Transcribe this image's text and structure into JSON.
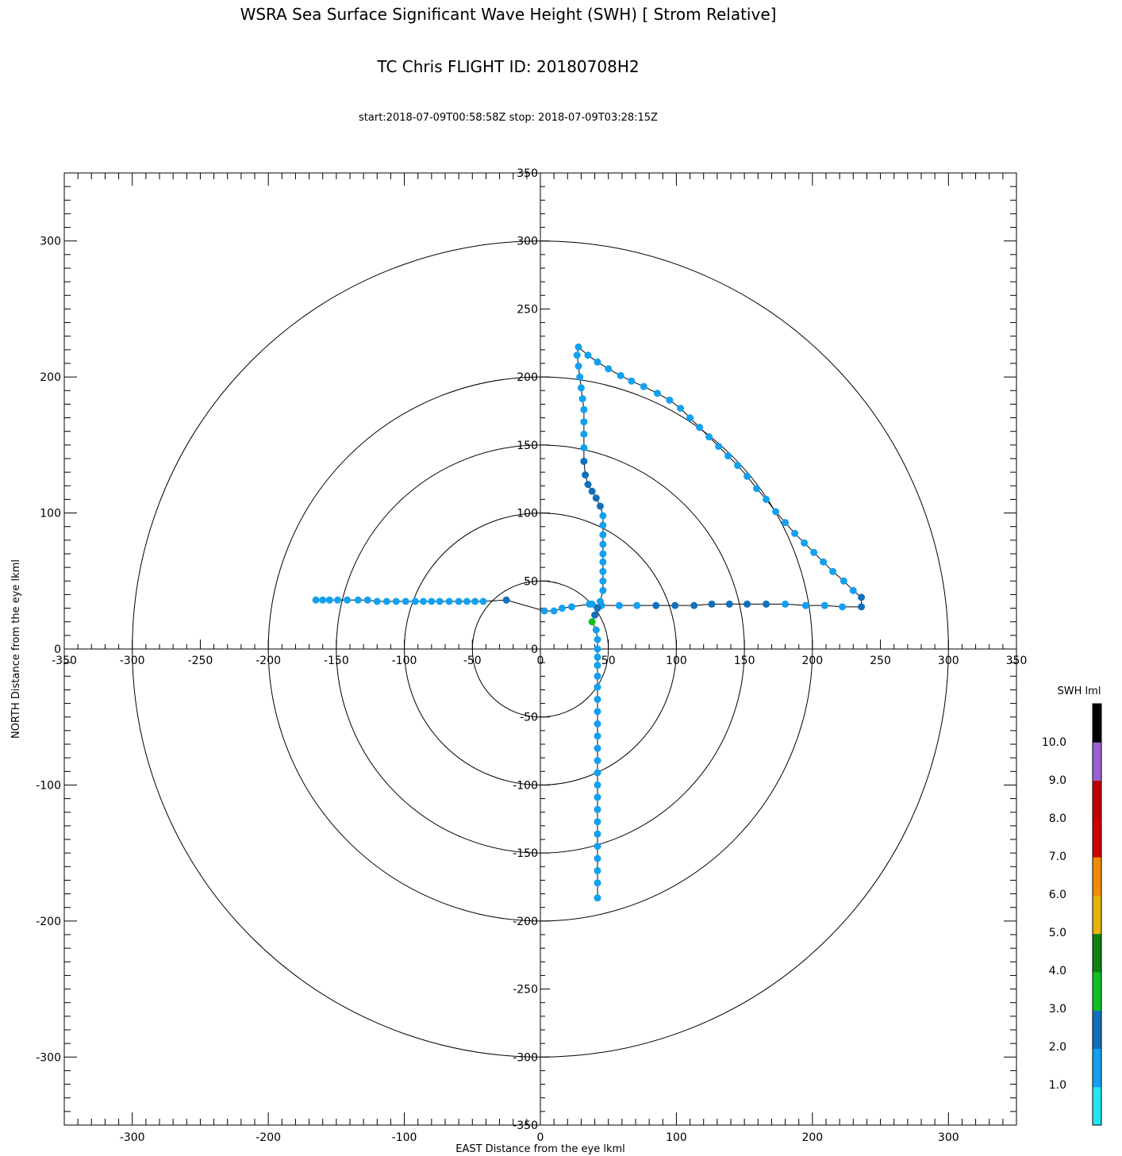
{
  "titles": {
    "line1": "WSRA Sea Surface Significant Wave Height (SWH) [ Strom Relative]",
    "line2": "TC Chris FLIGHT ID: 20180708H2",
    "line3": "start:2018-07-09T00:58:58Z stop: 2018-07-09T03:28:15Z"
  },
  "chart_data": {
    "type": "scatter",
    "title": "WSRA Sea Surface Significant Wave Height (SWH) [ Strom Relative]",
    "xlabel": "EAST Distance from the eye lkml",
    "ylabel": "NORTH Distance from the eye lkml",
    "xlim": [
      -350,
      350
    ],
    "ylim": [
      -350,
      350
    ],
    "outer_xticks": [
      -300,
      -200,
      -100,
      0,
      100,
      200,
      300
    ],
    "outer_yticks": [
      -300,
      -200,
      -100,
      0,
      100,
      200,
      300
    ],
    "inner_xticks": [
      -350,
      -300,
      -250,
      -200,
      -150,
      -100,
      -50,
      0,
      50,
      100,
      150,
      200,
      250,
      300,
      350
    ],
    "inner_yticks": [
      -350,
      -300,
      -250,
      -200,
      -150,
      -100,
      -50,
      0,
      50,
      100,
      150,
      200,
      250,
      300,
      350
    ],
    "range_rings": [
      50,
      100,
      150,
      200,
      300
    ],
    "colorbar": {
      "label": "SWH lml",
      "tick_labels": [
        "1.0",
        "2.0",
        "3.0",
        "4.0",
        "5.0",
        "6.0",
        "7.0",
        "8.0",
        "9.0",
        "10.0"
      ],
      "colors": [
        "#22e6f0",
        "#12a0f0",
        "#1070bc",
        "#10c020",
        "#108010",
        "#e8b408",
        "#f08c00",
        "#d00000",
        "#c00000",
        "#9a60d0",
        "#000000"
      ]
    },
    "track": [
      [
        -165,
        36
      ],
      [
        -160,
        36
      ],
      [
        -155,
        36
      ],
      [
        -149,
        36
      ],
      [
        -142,
        36
      ],
      [
        -134,
        36
      ],
      [
        -127,
        36
      ],
      [
        -120,
        35
      ],
      [
        -113,
        35
      ],
      [
        -106,
        35
      ],
      [
        -99,
        35
      ],
      [
        -92,
        35
      ],
      [
        -86,
        35
      ],
      [
        -80,
        35
      ],
      [
        -74,
        35
      ],
      [
        -67,
        35
      ],
      [
        -60,
        35
      ],
      [
        -54,
        35
      ],
      [
        -48,
        35
      ],
      [
        -42,
        35
      ],
      [
        -25,
        36
      ],
      [
        3,
        28
      ],
      [
        10,
        28
      ],
      [
        16,
        30
      ],
      [
        23,
        31
      ],
      [
        36,
        33
      ],
      [
        38,
        33
      ],
      [
        45,
        32
      ],
      [
        58,
        32
      ],
      [
        71,
        32
      ],
      [
        85,
        32
      ],
      [
        99,
        32
      ],
      [
        113,
        32
      ],
      [
        126,
        33
      ],
      [
        139,
        33
      ],
      [
        152,
        33
      ],
      [
        166,
        33
      ],
      [
        180,
        33
      ],
      [
        195,
        32
      ],
      [
        209,
        32
      ],
      [
        222,
        31
      ],
      [
        236,
        31
      ],
      [
        236,
        38
      ],
      [
        230,
        43
      ],
      [
        223,
        50
      ],
      [
        215,
        57
      ],
      [
        208,
        64
      ],
      [
        201,
        71
      ],
      [
        194,
        78
      ],
      [
        187,
        85
      ],
      [
        180,
        93
      ],
      [
        173,
        101
      ],
      [
        166,
        110
      ],
      [
        159,
        118
      ],
      [
        152,
        127
      ],
      [
        145,
        135
      ],
      [
        138,
        142
      ],
      [
        131,
        149
      ],
      [
        124,
        156
      ],
      [
        117,
        163
      ],
      [
        110,
        170
      ],
      [
        103,
        177
      ],
      [
        95,
        183
      ],
      [
        86,
        188
      ],
      [
        76,
        193
      ],
      [
        67,
        197
      ],
      [
        59,
        201
      ],
      [
        50,
        206
      ],
      [
        42,
        211
      ],
      [
        35,
        216
      ],
      [
        28,
        222
      ],
      [
        27,
        216
      ],
      [
        28,
        208
      ],
      [
        29,
        200
      ],
      [
        30,
        192
      ],
      [
        31,
        184
      ],
      [
        32,
        176
      ],
      [
        32,
        167
      ],
      [
        32,
        158
      ],
      [
        32,
        148
      ],
      [
        32,
        138
      ],
      [
        33,
        128
      ],
      [
        35,
        121
      ],
      [
        38,
        116
      ],
      [
        41,
        111
      ],
      [
        44,
        105
      ],
      [
        46,
        98
      ],
      [
        46,
        91
      ],
      [
        46,
        84
      ],
      [
        46,
        77
      ],
      [
        46,
        70
      ],
      [
        46,
        64
      ],
      [
        46,
        57
      ],
      [
        46,
        50
      ],
      [
        46,
        43
      ],
      [
        44,
        35
      ],
      [
        42,
        30
      ],
      [
        40,
        25
      ],
      [
        38,
        20
      ],
      [
        41,
        14
      ],
      [
        42,
        7
      ],
      [
        42,
        0
      ],
      [
        42,
        -6
      ],
      [
        42,
        -12
      ],
      [
        42,
        -20
      ],
      [
        42,
        -28
      ],
      [
        42,
        -37
      ],
      [
        42,
        -46
      ],
      [
        42,
        -55
      ],
      [
        42,
        -64
      ],
      [
        42,
        -73
      ],
      [
        42,
        -82
      ],
      [
        42,
        -91
      ],
      [
        42,
        -100
      ],
      [
        42,
        -109
      ],
      [
        42,
        -118
      ],
      [
        42,
        -127
      ],
      [
        42,
        -136
      ],
      [
        42,
        -145
      ],
      [
        42,
        -154
      ],
      [
        42,
        -163
      ],
      [
        42,
        -172
      ],
      [
        42,
        -183
      ]
    ],
    "swh": [
      1.5,
      1.5,
      1.5,
      1.5,
      1.5,
      1.5,
      1.5,
      1.5,
      1.5,
      1.5,
      1.5,
      1.5,
      1.5,
      1.5,
      1.5,
      1.5,
      1.5,
      1.5,
      1.5,
      1.5,
      2.5,
      1.5,
      1.5,
      1.5,
      1.5,
      1.5,
      1.5,
      1.5,
      1.5,
      1.5,
      2.5,
      2.5,
      2.5,
      2.5,
      2.5,
      2.5,
      2.5,
      1.5,
      1.5,
      1.5,
      1.5,
      2.5,
      2.5,
      1.5,
      1.5,
      1.5,
      1.5,
      1.5,
      1.5,
      1.5,
      1.5,
      1.5,
      1.5,
      1.5,
      1.5,
      1.5,
      1.5,
      1.5,
      1.5,
      1.5,
      1.5,
      1.5,
      1.5,
      1.5,
      1.5,
      1.5,
      1.5,
      1.5,
      1.5,
      1.5,
      1.5,
      1.5,
      1.5,
      1.5,
      1.5,
      1.5,
      1.5,
      1.5,
      1.5,
      1.5,
      2.5,
      2.5,
      2.5,
      2.5,
      2.5,
      2.5,
      1.5,
      1.5,
      1.5,
      1.5,
      1.5,
      1.5,
      1.5,
      1.5,
      1.5,
      1.5,
      2.5,
      2.5,
      3.5,
      1.5,
      1.5,
      1.5,
      1.5,
      1.5,
      1.5,
      1.5,
      1.5,
      1.5,
      1.5,
      1.5,
      1.5,
      1.5,
      1.5,
      1.5,
      1.5,
      1.5,
      1.5,
      1.5,
      1.5,
      1.5,
      1.5,
      1.5,
      1.5
    ]
  }
}
